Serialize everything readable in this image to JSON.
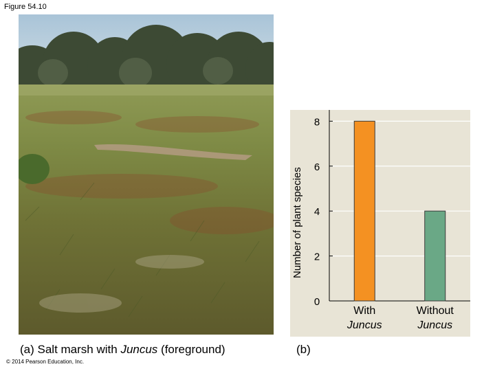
{
  "figure_label": "Figure 54.10",
  "caption_a": {
    "prefix": "(a) Salt marsh with ",
    "italic": "Juncus",
    "suffix": " (foreground)"
  },
  "caption_b": "(b)",
  "copyright": "© 2014 Pearson Education, Inc.",
  "colors": {
    "panel_bg": "#e8e4d6",
    "bar_with": "#f49122",
    "bar_without": "#6aa886",
    "bar_stroke": "#3a3a3a"
  },
  "chart_data": {
    "type": "bar",
    "ylabel": "Number of plant species",
    "ylim": [
      0,
      8.5
    ],
    "yticks": [
      0,
      2,
      4,
      6,
      8
    ],
    "grid": true,
    "categories": [
      {
        "line1": "With",
        "line2": "Juncus"
      },
      {
        "line1": "Without",
        "line2": "Juncus"
      }
    ],
    "values": [
      8,
      4
    ]
  }
}
